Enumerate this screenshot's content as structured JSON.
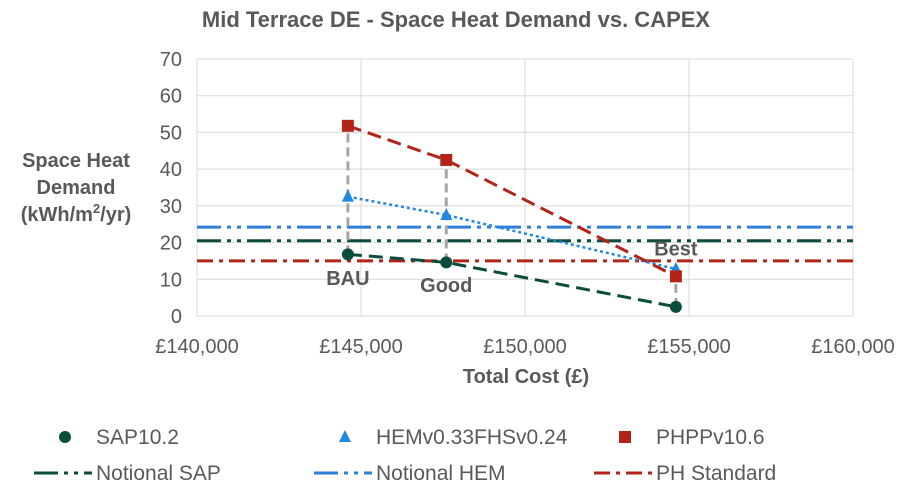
{
  "chart_data": {
    "type": "scatter",
    "title": "Mid Terrace DE - Space Heat Demand vs. CAPEX",
    "xlabel": "Total Cost (£)",
    "ylabel_lines": [
      "Space Heat",
      "Demand",
      "(kWh/m",
      "2",
      "/yr)"
    ],
    "xlim": [
      140000,
      160000
    ],
    "ylim": [
      0,
      70
    ],
    "x_ticks": [
      140000,
      145000,
      150000,
      155000,
      160000
    ],
    "x_tick_labels": [
      "£140,000",
      "£145,000",
      "£150,000",
      "£155,000",
      "£160,000"
    ],
    "y_ticks": [
      0,
      10,
      20,
      30,
      40,
      50,
      60,
      70
    ],
    "y_tick_labels": [
      "0",
      "10",
      "20",
      "30",
      "40",
      "50",
      "60",
      "70"
    ],
    "grid": true,
    "series": [
      {
        "name": "SAP10.2",
        "marker": "circle",
        "color": "#0b4d3c",
        "trend": "dash",
        "points": [
          [
            144600,
            16.8
          ],
          [
            147600,
            14.6
          ],
          [
            154600,
            2.5
          ]
        ]
      },
      {
        "name": "HEMv0.33FHSv0.24",
        "marker": "triangle",
        "color": "#1f88e5",
        "trend": "dot",
        "points": [
          [
            144600,
            32.5
          ],
          [
            147600,
            27.5
          ],
          [
            154600,
            12.8
          ]
        ]
      },
      {
        "name": "PHPPv10.6",
        "marker": "square",
        "color": "#b22418",
        "trend": "dash",
        "points": [
          [
            144600,
            51.8
          ],
          [
            147600,
            42.5
          ],
          [
            154600,
            10.8
          ]
        ]
      }
    ],
    "reference_lines": [
      {
        "name": "Notional SAP",
        "y": 20.5,
        "color": "#0b4d3c",
        "style": "dash-dot-dot"
      },
      {
        "name": "Notional HEM",
        "y": 24.2,
        "color": "#2f7fd6",
        "style": "dash-dot-dot"
      },
      {
        "name": "PH Standard",
        "y": 15.0,
        "color": "#b22418",
        "style": "dash-dot"
      }
    ],
    "drop_lines": [
      {
        "x": 144600,
        "y1": 16.8,
        "y2": 51.8
      },
      {
        "x": 147600,
        "y1": 14.6,
        "y2": 42.5
      },
      {
        "x": 154600,
        "y1": 2.5,
        "y2": 10.8
      }
    ],
    "annotations": [
      {
        "text": "BAU",
        "x": 144600,
        "y": 8.5
      },
      {
        "text": "Good",
        "x": 147600,
        "y": 6.5
      },
      {
        "text": "Best",
        "x": 154600,
        "y": 16.5
      }
    ],
    "legend_position": "bottom"
  }
}
